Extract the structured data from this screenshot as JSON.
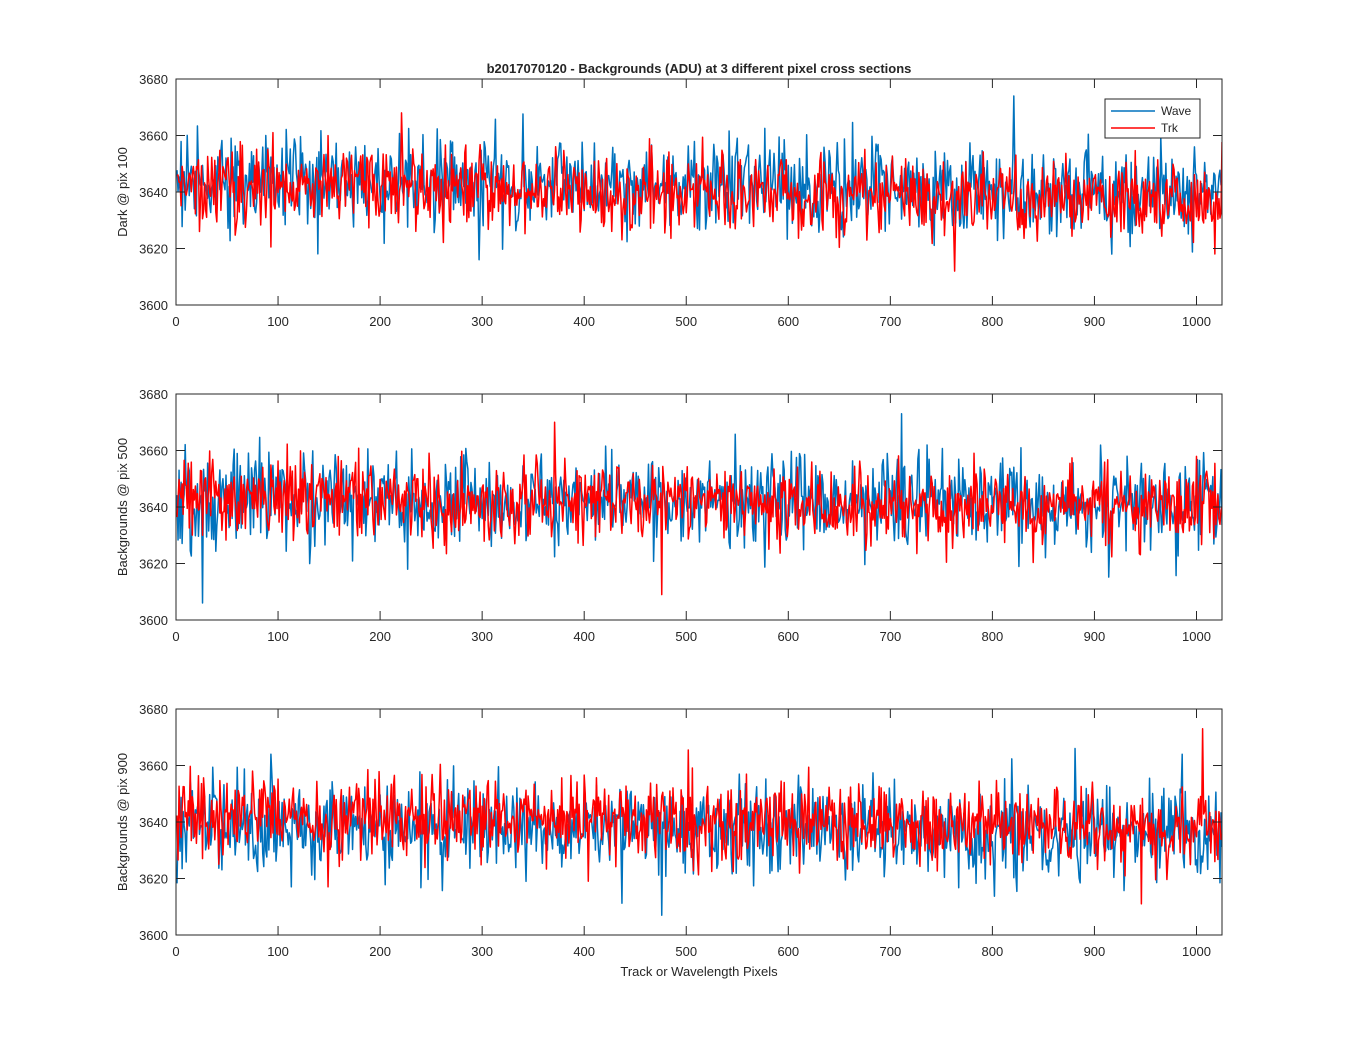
{
  "figure": {
    "title": "b2017070120 - Backgrounds (ADU) at 3 different pixel cross sections",
    "xlabel": "Track or Wavelength Pixels"
  },
  "chart_data": [
    {
      "type": "line",
      "ylabel": "Dark @ pix 100",
      "xlim": [
        0,
        1025
      ],
      "ylim": [
        3600,
        3680
      ],
      "xticks": [
        0,
        100,
        200,
        300,
        400,
        500,
        600,
        700,
        800,
        900,
        1000
      ],
      "yticks": [
        3600,
        3620,
        3640,
        3660,
        3680
      ],
      "legend": {
        "placement": "top-right",
        "entries": [
          "Wave",
          "Trk"
        ]
      },
      "series": [
        {
          "name": "Wave",
          "color": "#0072BD",
          "mean_start": 3645,
          "mean_end": 3640,
          "noise_sd": 8,
          "min": 3616,
          "max": 3674,
          "min_x": 296,
          "max_x": 820
        },
        {
          "name": "Trk",
          "color": "#FF0000",
          "mean_start": 3643,
          "mean_end": 3636,
          "noise_sd": 7,
          "min": 3612,
          "max": 3668,
          "min_x": 762,
          "max_x": 220
        }
      ]
    },
    {
      "type": "line",
      "ylabel": "Backgrounds @ pix 500",
      "xlim": [
        0,
        1025
      ],
      "ylim": [
        3600,
        3680
      ],
      "xticks": [
        0,
        100,
        200,
        300,
        400,
        500,
        600,
        700,
        800,
        900,
        1000
      ],
      "yticks": [
        3600,
        3620,
        3640,
        3660,
        3680
      ],
      "series": [
        {
          "name": "Wave",
          "color": "#0072BD",
          "mean_start": 3643,
          "mean_end": 3641,
          "noise_sd": 8,
          "min": 3606,
          "max": 3673,
          "min_x": 25,
          "max_x": 710
        },
        {
          "name": "Trk",
          "color": "#FF0000",
          "mean_start": 3644,
          "mean_end": 3640,
          "noise_sd": 7,
          "min": 3609,
          "max": 3670,
          "min_x": 475,
          "max_x": 370
        }
      ]
    },
    {
      "type": "line",
      "ylabel": "Backgrounds @ pix 900",
      "xlim": [
        0,
        1025
      ],
      "ylim": [
        3600,
        3680
      ],
      "xticks": [
        0,
        100,
        200,
        300,
        400,
        500,
        600,
        700,
        800,
        900,
        1000
      ],
      "yticks": [
        3600,
        3620,
        3640,
        3660,
        3680
      ],
      "series": [
        {
          "name": "Wave",
          "color": "#0072BD",
          "mean_start": 3638,
          "mean_end": 3636,
          "noise_sd": 8,
          "min": 3607,
          "max": 3666,
          "min_x": 475,
          "max_x": 880
        },
        {
          "name": "Trk",
          "color": "#FF0000",
          "mean_start": 3642,
          "mean_end": 3638,
          "noise_sd": 7,
          "min": 3611,
          "max": 3673,
          "min_x": 945,
          "max_x": 1005
        }
      ]
    }
  ]
}
